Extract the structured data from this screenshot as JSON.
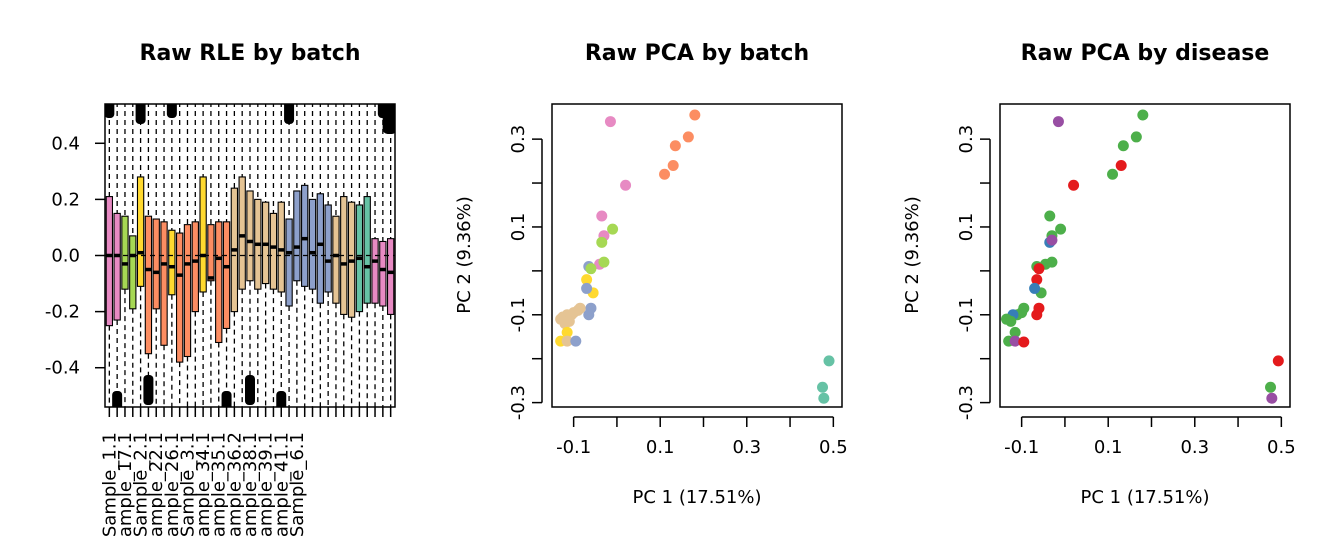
{
  "chart_data": [
    {
      "type": "boxplot",
      "title": "Raw RLE by batch",
      "xlabel": "",
      "ylabel": "",
      "ylim": [
        -0.54,
        0.54
      ],
      "yticks": [
        -0.4,
        -0.2,
        0.0,
        0.2,
        0.4
      ],
      "ytick_labels": [
        "-0.4",
        "-0.2",
        "0.0",
        "0.2",
        "0.4"
      ],
      "xtick_labels": [
        "Sample_1.1",
        "Sample_17.1",
        "Sample_2.1",
        "Sample_22.1",
        "Sample_26.1",
        "Sample_3.1",
        "Sample_34.1",
        "Sample_35.1",
        "Sample_36.2",
        "Sample_38.1",
        "Sample_39.1",
        "Sample_41.1",
        "Sample_6.1"
      ],
      "xtick_positions": [
        1,
        3,
        5,
        7,
        9,
        11,
        13,
        15,
        17,
        19,
        21,
        23,
        25
      ],
      "baseline": 0,
      "boxes": [
        {
          "q1": -0.25,
          "med": 0.0,
          "q3": 0.21,
          "color": "#E78AC3"
        },
        {
          "q1": -0.23,
          "med": 0.0,
          "q3": 0.15,
          "color": "#E78AC3"
        },
        {
          "q1": -0.12,
          "med": -0.03,
          "q3": 0.14,
          "color": "#A6D854"
        },
        {
          "q1": -0.19,
          "med": 0.0,
          "q3": 0.07,
          "color": "#A6D854"
        },
        {
          "q1": -0.11,
          "med": 0.01,
          "q3": 0.28,
          "color": "#FFD92F"
        },
        {
          "q1": -0.35,
          "med": -0.05,
          "q3": 0.14,
          "color": "#FC8D62"
        },
        {
          "q1": -0.19,
          "med": -0.06,
          "q3": 0.13,
          "color": "#FC8D62"
        },
        {
          "q1": -0.32,
          "med": -0.03,
          "q3": 0.12,
          "color": "#FC8D62"
        },
        {
          "q1": -0.14,
          "med": -0.04,
          "q3": 0.09,
          "color": "#FFD92F"
        },
        {
          "q1": -0.38,
          "med": -0.07,
          "q3": 0.08,
          "color": "#FC8D62"
        },
        {
          "q1": -0.36,
          "med": -0.03,
          "q3": 0.11,
          "color": "#FC8D62"
        },
        {
          "q1": -0.2,
          "med": -0.02,
          "q3": 0.12,
          "color": "#FC8D62"
        },
        {
          "q1": -0.13,
          "med": 0.0,
          "q3": 0.28,
          "color": "#FFD92F"
        },
        {
          "q1": -0.09,
          "med": -0.08,
          "q3": 0.11,
          "color": "#FC8D62"
        },
        {
          "q1": -0.31,
          "med": -0.01,
          "q3": 0.12,
          "color": "#FC8D62"
        },
        {
          "q1": -0.26,
          "med": -0.04,
          "q3": 0.12,
          "color": "#FC8D62"
        },
        {
          "q1": -0.2,
          "med": 0.02,
          "q3": 0.24,
          "color": "#E5C494"
        },
        {
          "q1": -0.12,
          "med": 0.07,
          "q3": 0.28,
          "color": "#E5C494"
        },
        {
          "q1": -0.09,
          "med": 0.05,
          "q3": 0.23,
          "color": "#E5C494"
        },
        {
          "q1": -0.12,
          "med": 0.04,
          "q3": 0.2,
          "color": "#E5C494"
        },
        {
          "q1": -0.1,
          "med": 0.04,
          "q3": 0.19,
          "color": "#E5C494"
        },
        {
          "q1": -0.12,
          "med": 0.03,
          "q3": 0.15,
          "color": "#E5C494"
        },
        {
          "q1": -0.13,
          "med": 0.02,
          "q3": 0.19,
          "color": "#E5C494"
        },
        {
          "q1": -0.18,
          "med": 0.01,
          "q3": 0.13,
          "color": "#8DA0CB"
        },
        {
          "q1": -0.09,
          "med": 0.03,
          "q3": 0.23,
          "color": "#8DA0CB"
        },
        {
          "q1": -0.11,
          "med": 0.06,
          "q3": 0.25,
          "color": "#8DA0CB"
        },
        {
          "q1": -0.12,
          "med": 0.01,
          "q3": 0.2,
          "color": "#8DA0CB"
        },
        {
          "q1": -0.17,
          "med": 0.04,
          "q3": 0.22,
          "color": "#8DA0CB"
        },
        {
          "q1": -0.13,
          "med": -0.02,
          "q3": 0.18,
          "color": "#8DA0CB"
        },
        {
          "q1": -0.17,
          "med": 0.0,
          "q3": 0.14,
          "color": "#E5C494"
        },
        {
          "q1": -0.21,
          "med": -0.03,
          "q3": 0.21,
          "color": "#E5C494"
        },
        {
          "q1": -0.22,
          "med": -0.02,
          "q3": 0.19,
          "color": "#E5C494"
        },
        {
          "q1": -0.2,
          "med": -0.01,
          "q3": 0.18,
          "color": "#66C2A5"
        },
        {
          "q1": -0.17,
          "med": -0.04,
          "q3": 0.21,
          "color": "#66C2A5"
        },
        {
          "q1": -0.17,
          "med": -0.02,
          "q3": 0.06,
          "color": "#E78AC3"
        },
        {
          "q1": -0.18,
          "med": -0.05,
          "q3": 0.05,
          "color": "#E78AC3"
        },
        {
          "q1": -0.21,
          "med": -0.06,
          "q3": 0.06,
          "color": "#E78AC3"
        }
      ]
    },
    {
      "type": "scatter",
      "title": "Raw PCA by batch",
      "xlabel": "PC 1 (17.51%)",
      "ylabel": "PC 2 (9.36%)",
      "xlim": [
        -0.15,
        0.52
      ],
      "ylim": [
        -0.31,
        0.38
      ],
      "xticks": [
        -0.1,
        0.1,
        0.3,
        0.5
      ],
      "xtick_labels": [
        "-0.1",
        "0.1",
        "0.3",
        "0.5"
      ],
      "xticks_minor": [
        0.0,
        0.2,
        0.4
      ],
      "yticks": [
        -0.3,
        -0.1,
        0.1,
        0.3
      ],
      "ytick_labels": [
        "-0.3",
        "-0.1",
        "0.1",
        "0.3"
      ],
      "yticks_minor": [
        -0.2,
        0.0,
        0.2
      ],
      "points": [
        {
          "x": 0.18,
          "y": 0.355,
          "color": "#FC8D62"
        },
        {
          "x": 0.165,
          "y": 0.305,
          "color": "#FC8D62"
        },
        {
          "x": 0.135,
          "y": 0.285,
          "color": "#FC8D62"
        },
        {
          "x": 0.13,
          "y": 0.24,
          "color": "#FC8D62"
        },
        {
          "x": 0.11,
          "y": 0.22,
          "color": "#FC8D62"
        },
        {
          "x": -0.015,
          "y": 0.34,
          "color": "#E78AC3"
        },
        {
          "x": 0.02,
          "y": 0.195,
          "color": "#E78AC3"
        },
        {
          "x": -0.035,
          "y": 0.125,
          "color": "#E78AC3"
        },
        {
          "x": -0.01,
          "y": 0.095,
          "color": "#A6D854"
        },
        {
          "x": -0.03,
          "y": 0.08,
          "color": "#E78AC3"
        },
        {
          "x": -0.035,
          "y": 0.065,
          "color": "#A6D854"
        },
        {
          "x": -0.04,
          "y": 0.015,
          "color": "#E78AC3"
        },
        {
          "x": -0.03,
          "y": 0.02,
          "color": "#A6D854"
        },
        {
          "x": -0.065,
          "y": 0.01,
          "color": "#8DA0CB"
        },
        {
          "x": -0.06,
          "y": 0.005,
          "color": "#A6D854"
        },
        {
          "x": -0.07,
          "y": -0.02,
          "color": "#FFD92F"
        },
        {
          "x": -0.055,
          "y": -0.05,
          "color": "#FFD92F"
        },
        {
          "x": -0.07,
          "y": -0.04,
          "color": "#8DA0CB"
        },
        {
          "x": -0.06,
          "y": -0.085,
          "color": "#8DA0CB"
        },
        {
          "x": -0.065,
          "y": -0.1,
          "color": "#8DA0CB"
        },
        {
          "x": -0.085,
          "y": -0.085,
          "color": "#E5C494"
        },
        {
          "x": -0.09,
          "y": -0.09,
          "color": "#E5C494"
        },
        {
          "x": -0.1,
          "y": -0.095,
          "color": "#E5C494"
        },
        {
          "x": -0.105,
          "y": -0.1,
          "color": "#E5C494"
        },
        {
          "x": -0.115,
          "y": -0.1,
          "color": "#E5C494"
        },
        {
          "x": -0.125,
          "y": -0.105,
          "color": "#E5C494"
        },
        {
          "x": -0.13,
          "y": -0.11,
          "color": "#E5C494"
        },
        {
          "x": -0.12,
          "y": -0.12,
          "color": "#E5C494"
        },
        {
          "x": -0.11,
          "y": -0.115,
          "color": "#E5C494"
        },
        {
          "x": -0.115,
          "y": -0.14,
          "color": "#FFD92F"
        },
        {
          "x": -0.13,
          "y": -0.16,
          "color": "#FFD92F"
        },
        {
          "x": -0.115,
          "y": -0.16,
          "color": "#E5C494"
        },
        {
          "x": -0.095,
          "y": -0.16,
          "color": "#8DA0CB"
        },
        {
          "x": 0.49,
          "y": -0.205,
          "color": "#66C2A5"
        },
        {
          "x": 0.475,
          "y": -0.265,
          "color": "#66C2A5"
        },
        {
          "x": 0.478,
          "y": -0.29,
          "color": "#66C2A5"
        }
      ]
    },
    {
      "type": "scatter",
      "title": "Raw PCA by disease",
      "xlabel": "PC 1 (17.51%)",
      "ylabel": "PC 2 (9.36%)",
      "xlim": [
        -0.15,
        0.52
      ],
      "ylim": [
        -0.31,
        0.38
      ],
      "xticks": [
        -0.1,
        0.1,
        0.3,
        0.5
      ],
      "xtick_labels": [
        "-0.1",
        "0.1",
        "0.3",
        "0.5"
      ],
      "xticks_minor": [
        0.0,
        0.2,
        0.4
      ],
      "yticks": [
        -0.3,
        -0.1,
        0.1,
        0.3
      ],
      "ytick_labels": [
        "-0.3",
        "-0.1",
        "0.1",
        "0.3"
      ],
      "yticks_minor": [
        -0.2,
        0.0,
        0.2
      ],
      "points": [
        {
          "x": 0.18,
          "y": 0.355,
          "color": "#4DAF4A"
        },
        {
          "x": 0.165,
          "y": 0.305,
          "color": "#4DAF4A"
        },
        {
          "x": 0.135,
          "y": 0.285,
          "color": "#4DAF4A"
        },
        {
          "x": 0.13,
          "y": 0.24,
          "color": "#E41A1C"
        },
        {
          "x": 0.11,
          "y": 0.22,
          "color": "#4DAF4A"
        },
        {
          "x": -0.015,
          "y": 0.34,
          "color": "#984EA3"
        },
        {
          "x": 0.02,
          "y": 0.195,
          "color": "#E41A1C"
        },
        {
          "x": -0.035,
          "y": 0.125,
          "color": "#4DAF4A"
        },
        {
          "x": -0.01,
          "y": 0.095,
          "color": "#4DAF4A"
        },
        {
          "x": -0.03,
          "y": 0.08,
          "color": "#4DAF4A"
        },
        {
          "x": -0.035,
          "y": 0.065,
          "color": "#377EB8"
        },
        {
          "x": -0.03,
          "y": 0.07,
          "color": "#984EA3"
        },
        {
          "x": -0.045,
          "y": 0.015,
          "color": "#4DAF4A"
        },
        {
          "x": -0.03,
          "y": 0.02,
          "color": "#4DAF4A"
        },
        {
          "x": -0.065,
          "y": 0.01,
          "color": "#4DAF4A"
        },
        {
          "x": -0.06,
          "y": 0.005,
          "color": "#E41A1C"
        },
        {
          "x": -0.065,
          "y": -0.02,
          "color": "#E41A1C"
        },
        {
          "x": -0.055,
          "y": -0.05,
          "color": "#4DAF4A"
        },
        {
          "x": -0.07,
          "y": -0.04,
          "color": "#377EB8"
        },
        {
          "x": -0.06,
          "y": -0.085,
          "color": "#E41A1C"
        },
        {
          "x": -0.065,
          "y": -0.1,
          "color": "#E41A1C"
        },
        {
          "x": -0.095,
          "y": -0.085,
          "color": "#4DAF4A"
        },
        {
          "x": -0.1,
          "y": -0.095,
          "color": "#4DAF4A"
        },
        {
          "x": -0.11,
          "y": -0.1,
          "color": "#4DAF4A"
        },
        {
          "x": -0.12,
          "y": -0.1,
          "color": "#377EB8"
        },
        {
          "x": -0.135,
          "y": -0.11,
          "color": "#4DAF4A"
        },
        {
          "x": -0.125,
          "y": -0.115,
          "color": "#4DAF4A"
        },
        {
          "x": -0.115,
          "y": -0.14,
          "color": "#4DAF4A"
        },
        {
          "x": -0.13,
          "y": -0.16,
          "color": "#4DAF4A"
        },
        {
          "x": -0.115,
          "y": -0.16,
          "color": "#984EA3"
        },
        {
          "x": -0.095,
          "y": -0.162,
          "color": "#E41A1C"
        },
        {
          "x": 0.493,
          "y": -0.205,
          "color": "#E41A1C"
        },
        {
          "x": 0.475,
          "y": -0.265,
          "color": "#4DAF4A"
        },
        {
          "x": 0.478,
          "y": -0.29,
          "color": "#984EA3"
        }
      ]
    }
  ]
}
